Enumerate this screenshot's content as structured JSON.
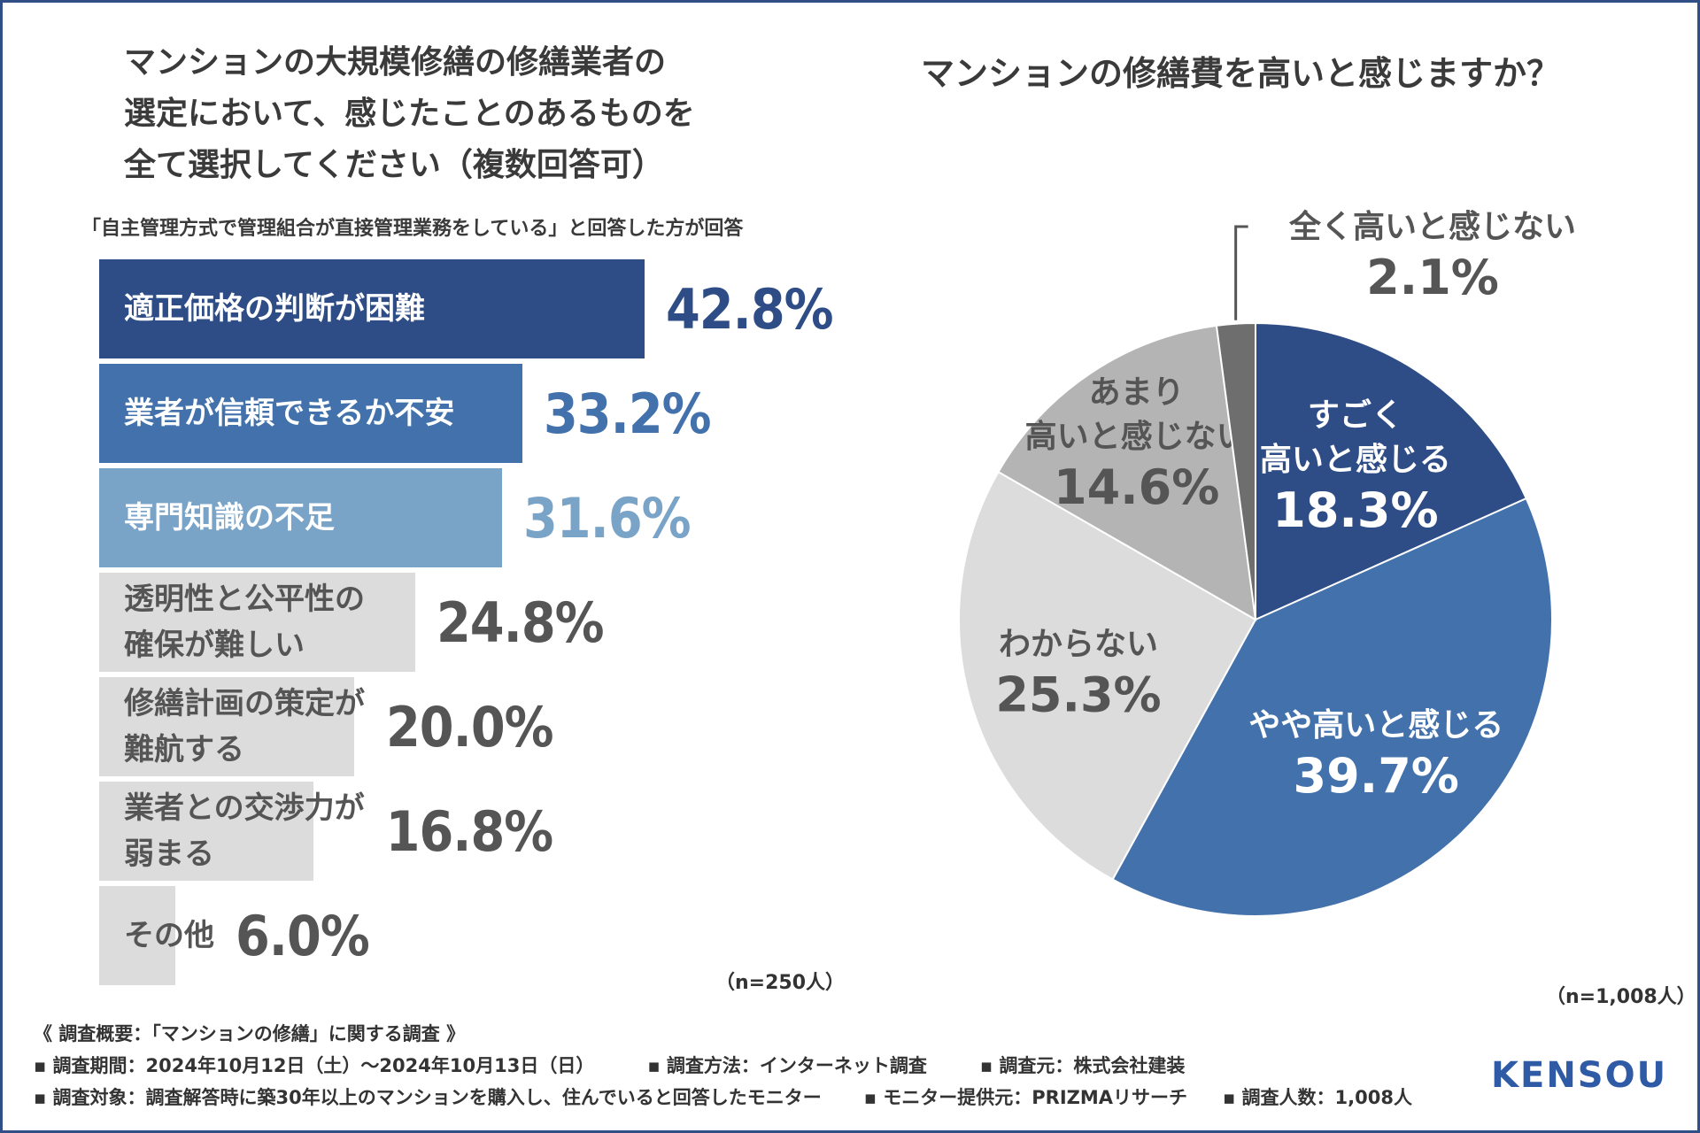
{
  "left_question": {
    "lines": [
      "マンションの大規模修繕の修繕業者の",
      "選定において、感じたことのあるものを",
      "全て選択してください（複数回答可）"
    ],
    "subtitle": "「自主管理方式で管理組合が直接管理業務をしている」と回答した方が回答",
    "n_label": "（n=250人）"
  },
  "right_question": {
    "title": "マンションの修繕費を高いと感じますか？",
    "n_label": "（n=1,008人）"
  },
  "chart_data": [
    {
      "type": "bar",
      "orientation": "horizontal",
      "title": "マンションの大規模修繕の修繕業者の選定において、感じたことのあるものを全て選択してください（複数回答可）",
      "unit": "%",
      "categories": [
        "適正価格の判断が困難",
        "業者が信頼できるか不安",
        "専門知識の不足",
        "透明性と公平性の確保が難しい",
        "修繕計画の策定が難航する",
        "業者との交渉力が弱まる",
        "その他"
      ],
      "label_lines": [
        [
          "適正価格の判断が困難"
        ],
        [
          "業者が信頼できるか不安"
        ],
        [
          "専門知識の不足"
        ],
        [
          "透明性と公平性の",
          "確保が難しい"
        ],
        [
          "修繕計画の策定が",
          "難航する"
        ],
        [
          "業者との交渉力が",
          "弱まる"
        ],
        [
          "その他"
        ]
      ],
      "value_labels": [
        "42.8%",
        "33.2%",
        "31.6%",
        "24.8%",
        "20.0%",
        "16.8%",
        "6.0%"
      ],
      "values": [
        42.8,
        33.2,
        31.6,
        24.8,
        20.0,
        16.8,
        6.0
      ],
      "bar_colors": [
        "#2e4d86",
        "#4271ab",
        "#7aa3c8",
        "#dcdcdc",
        "#dcdcdc",
        "#dcdcdc",
        "#dcdcdc"
      ],
      "label_colors": [
        "#ffffff",
        "#ffffff",
        "#ffffff",
        "#555555",
        "#555555",
        "#555555",
        "#555555"
      ],
      "value_colors": [
        "#2e4d86",
        "#4271ab",
        "#7aa3c8",
        "#555555",
        "#555555",
        "#555555",
        "#555555"
      ],
      "n": "n=250人"
    },
    {
      "type": "pie",
      "title": "マンションの修繕費を高いと感じますか？",
      "labels": [
        "すごく高いと感じる",
        "やや高いと感じる",
        "わからない",
        "あまり高いと感じない",
        "全く高いと感じない"
      ],
      "label_lines": [
        [
          "すごく",
          "高いと感じる"
        ],
        [
          "やや高いと感じる"
        ],
        [
          "わからない"
        ],
        [
          "あまり",
          "高いと感じない"
        ],
        [
          "全く高いと感じない"
        ]
      ],
      "value_labels": [
        "18.3%",
        "39.7%",
        "25.3%",
        "14.6%",
        "2.1%"
      ],
      "values": [
        18.3,
        39.7,
        25.3,
        14.6,
        2.1
      ],
      "colors": [
        "#2e4d86",
        "#4271ab",
        "#dcdcdc",
        "#b4b4b4",
        "#6e6e6e"
      ],
      "text_colors": [
        "#ffffff",
        "#ffffff",
        "#555555",
        "#555555",
        "#555555"
      ],
      "start": "12 o'clock, clockwise",
      "n": "n=1,008人"
    }
  ],
  "footer": {
    "heading": "《 調査概要：「マンションの修繕」に関する調査 》",
    "period": "▪ 調査期間：2024年10月12日（土）〜2024年10月13日（日）",
    "method": "▪ 調査方法：インターネット調査",
    "source": "▪ 調査元：株式会社建装",
    "target": "▪ 調査対象：調査解答時に築30年以上のマンションを購入し、住んでいると回答したモニター",
    "provider": "▪ モニター提供元：PRIZMAリサーチ",
    "count": "▪ 調査人数：1,008人"
  },
  "logo": {
    "text": "KENSOU",
    "color": "#2f5aa6"
  }
}
